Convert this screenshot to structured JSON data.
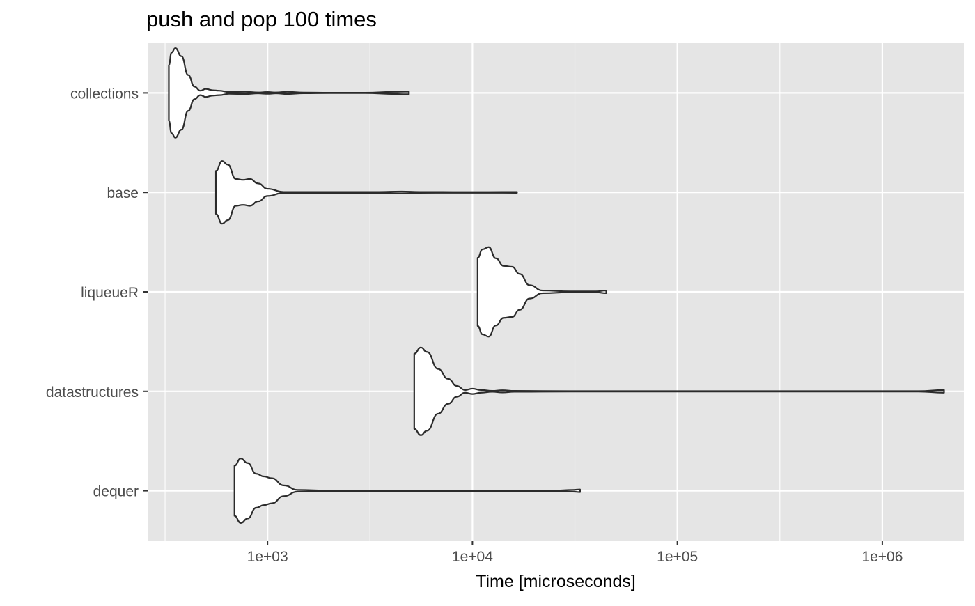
{
  "chart_data": {
    "type": "violin",
    "title": "push and pop 100 times",
    "xlabel": "Time [microseconds]",
    "ylabel": "",
    "x_scale": "log10",
    "xlim": [
      260,
      2500000
    ],
    "x_ticks": [
      1000,
      10000,
      100000,
      1000000
    ],
    "x_tick_labels": [
      "1e+03",
      "1e+04",
      "1e+05",
      "1e+06"
    ],
    "categories": [
      "collections",
      "base",
      "liqueueR",
      "datastructures",
      "dequer"
    ],
    "grid": true,
    "background_color": "#e5e5e5",
    "grid_color": "#ffffff",
    "violin_fill": "#ffffff",
    "violin_stroke": "#2b2b2b",
    "series": [
      {
        "name": "collections",
        "min": 330,
        "max": 4900,
        "profile": [
          [
            330,
            0.62
          ],
          [
            340,
            0.9
          ],
          [
            355,
            1.0
          ],
          [
            380,
            0.82
          ],
          [
            410,
            0.4
          ],
          [
            440,
            0.14
          ],
          [
            470,
            0.05
          ],
          [
            500,
            0.09
          ],
          [
            540,
            0.06
          ],
          [
            580,
            0.05
          ],
          [
            650,
            0.02
          ],
          [
            780,
            0.025
          ],
          [
            900,
            0.01
          ],
          [
            1000,
            0.02
          ],
          [
            1100,
            0.01
          ],
          [
            1250,
            0.025
          ],
          [
            1500,
            0.008
          ],
          [
            2000,
            0.004
          ],
          [
            3000,
            0.004
          ],
          [
            4200,
            0.025
          ],
          [
            4700,
            0.03
          ],
          [
            4900,
            0.03
          ]
        ]
      },
      {
        "name": "base",
        "min": 560,
        "max": 16500,
        "profile": [
          [
            560,
            0.48
          ],
          [
            600,
            0.7
          ],
          [
            640,
            0.62
          ],
          [
            700,
            0.3
          ],
          [
            760,
            0.28
          ],
          [
            820,
            0.3
          ],
          [
            900,
            0.2
          ],
          [
            1000,
            0.08
          ],
          [
            1200,
            0.01
          ],
          [
            2000,
            0.01
          ],
          [
            3500,
            0.01
          ],
          [
            4500,
            0.02
          ],
          [
            5500,
            0.01
          ],
          [
            8000,
            0.008
          ],
          [
            12000,
            0.008
          ],
          [
            16500,
            0.01
          ]
        ]
      },
      {
        "name": "liqueueR",
        "min": 10600,
        "max": 45000,
        "profile": [
          [
            10600,
            0.76
          ],
          [
            11200,
            0.95
          ],
          [
            12000,
            1.0
          ],
          [
            13000,
            0.75
          ],
          [
            14200,
            0.58
          ],
          [
            15600,
            0.56
          ],
          [
            17000,
            0.4
          ],
          [
            19000,
            0.15
          ],
          [
            22000,
            0.03
          ],
          [
            30000,
            0.01
          ],
          [
            40000,
            0.01
          ],
          [
            45000,
            0.03
          ]
        ]
      },
      {
        "name": "datastructures",
        "min": 5200,
        "max": 2000000,
        "profile": [
          [
            5200,
            0.84
          ],
          [
            5600,
            0.98
          ],
          [
            6000,
            0.88
          ],
          [
            6800,
            0.5
          ],
          [
            7600,
            0.28
          ],
          [
            8400,
            0.12
          ],
          [
            9200,
            0.03
          ],
          [
            10000,
            0.06
          ],
          [
            11000,
            0.03
          ],
          [
            12500,
            0.01
          ],
          [
            14000,
            0.025
          ],
          [
            16000,
            0.01
          ],
          [
            30000,
            0.005
          ],
          [
            100000,
            0.005
          ],
          [
            500000,
            0.005
          ],
          [
            1500000,
            0.005
          ],
          [
            2000000,
            0.03
          ]
        ]
      },
      {
        "name": "dequer",
        "min": 690,
        "max": 33500,
        "profile": [
          [
            690,
            0.56
          ],
          [
            740,
            0.72
          ],
          [
            800,
            0.62
          ],
          [
            880,
            0.38
          ],
          [
            960,
            0.32
          ],
          [
            1050,
            0.28
          ],
          [
            1200,
            0.12
          ],
          [
            1400,
            0.02
          ],
          [
            2000,
            0.005
          ],
          [
            10000,
            0.005
          ],
          [
            25000,
            0.005
          ],
          [
            31000,
            0.02
          ],
          [
            33500,
            0.03
          ]
        ]
      }
    ]
  }
}
